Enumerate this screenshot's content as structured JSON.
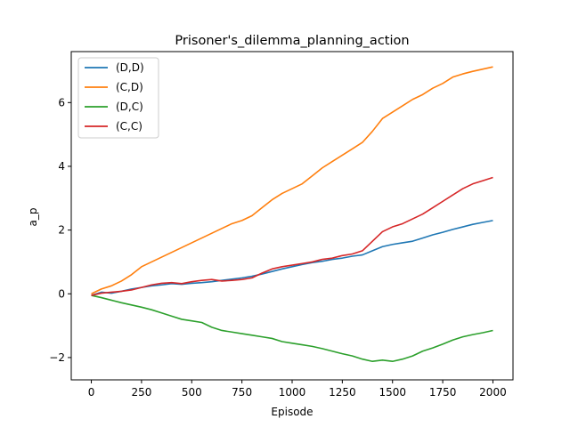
{
  "chart_data": {
    "type": "line",
    "title": "Prisoner's_dilemma_planning_action",
    "xlabel": "Episode",
    "ylabel": "a_p",
    "xlim": [
      -100,
      2100
    ],
    "ylim": [
      -2.7,
      7.6
    ],
    "xticks": [
      0,
      250,
      500,
      750,
      1000,
      1250,
      1500,
      1750,
      2000
    ],
    "yticks": [
      -2,
      0,
      2,
      4,
      6
    ],
    "grid": false,
    "legend_position": "upper-left",
    "series": [
      {
        "name": "(D,D)",
        "color": "#1f77b4",
        "x": [
          0,
          50,
          100,
          150,
          200,
          250,
          300,
          350,
          400,
          450,
          500,
          550,
          600,
          650,
          700,
          750,
          800,
          850,
          900,
          950,
          1000,
          1050,
          1100,
          1150,
          1200,
          1250,
          1300,
          1350,
          1400,
          1450,
          1500,
          1550,
          1600,
          1650,
          1700,
          1750,
          1800,
          1850,
          1900,
          1950,
          2000
        ],
        "values": [
          -0.05,
          0.05,
          0.02,
          0.08,
          0.15,
          0.2,
          0.25,
          0.28,
          0.32,
          0.3,
          0.33,
          0.35,
          0.38,
          0.42,
          0.46,
          0.5,
          0.55,
          0.62,
          0.7,
          0.78,
          0.85,
          0.92,
          0.98,
          1.02,
          1.08,
          1.12,
          1.18,
          1.22,
          1.35,
          1.48,
          1.55,
          1.6,
          1.65,
          1.75,
          1.85,
          1.93,
          2.02,
          2.1,
          2.18,
          2.24,
          2.3
        ]
      },
      {
        "name": "(C,D)",
        "color": "#ff7f0e",
        "x": [
          0,
          50,
          100,
          150,
          200,
          250,
          300,
          350,
          400,
          450,
          500,
          550,
          600,
          650,
          700,
          750,
          800,
          850,
          900,
          950,
          1000,
          1050,
          1100,
          1150,
          1200,
          1250,
          1300,
          1350,
          1400,
          1450,
          1500,
          1550,
          1600,
          1650,
          1700,
          1750,
          1800,
          1850,
          1900,
          1950,
          2000
        ],
        "values": [
          0.0,
          0.15,
          0.25,
          0.4,
          0.6,
          0.85,
          1.0,
          1.15,
          1.3,
          1.45,
          1.6,
          1.75,
          1.9,
          2.05,
          2.2,
          2.3,
          2.45,
          2.7,
          2.95,
          3.15,
          3.3,
          3.45,
          3.7,
          3.95,
          4.15,
          4.35,
          4.55,
          4.75,
          5.1,
          5.5,
          5.7,
          5.9,
          6.1,
          6.25,
          6.45,
          6.6,
          6.8,
          6.9,
          6.98,
          7.05,
          7.12
        ]
      },
      {
        "name": "(D,C)",
        "color": "#2ca02c",
        "x": [
          0,
          50,
          100,
          150,
          200,
          250,
          300,
          350,
          400,
          450,
          500,
          550,
          600,
          650,
          700,
          750,
          800,
          850,
          900,
          950,
          1000,
          1050,
          1100,
          1150,
          1200,
          1250,
          1300,
          1350,
          1400,
          1450,
          1500,
          1550,
          1600,
          1650,
          1700,
          1750,
          1800,
          1850,
          1900,
          1950,
          2000
        ],
        "values": [
          -0.05,
          -0.12,
          -0.2,
          -0.28,
          -0.35,
          -0.42,
          -0.5,
          -0.6,
          -0.7,
          -0.8,
          -0.85,
          -0.9,
          -1.05,
          -1.15,
          -1.2,
          -1.25,
          -1.3,
          -1.35,
          -1.4,
          -1.5,
          -1.55,
          -1.6,
          -1.65,
          -1.72,
          -1.8,
          -1.88,
          -1.95,
          -2.05,
          -2.12,
          -2.08,
          -2.12,
          -2.05,
          -1.95,
          -1.8,
          -1.7,
          -1.58,
          -1.45,
          -1.35,
          -1.28,
          -1.22,
          -1.15
        ]
      },
      {
        "name": "(C,C)",
        "color": "#d62728",
        "x": [
          0,
          50,
          100,
          150,
          200,
          250,
          300,
          350,
          400,
          450,
          500,
          550,
          600,
          650,
          700,
          750,
          800,
          850,
          900,
          950,
          1000,
          1050,
          1100,
          1150,
          1200,
          1250,
          1300,
          1350,
          1400,
          1450,
          1500,
          1550,
          1600,
          1650,
          1700,
          1750,
          1800,
          1850,
          1900,
          1950,
          2000
        ],
        "values": [
          -0.05,
          0.02,
          0.05,
          0.08,
          0.12,
          0.2,
          0.28,
          0.33,
          0.35,
          0.32,
          0.38,
          0.42,
          0.45,
          0.4,
          0.42,
          0.45,
          0.5,
          0.65,
          0.78,
          0.85,
          0.9,
          0.95,
          1.0,
          1.08,
          1.12,
          1.2,
          1.25,
          1.35,
          1.65,
          1.95,
          2.1,
          2.2,
          2.35,
          2.5,
          2.7,
          2.9,
          3.1,
          3.3,
          3.45,
          3.55,
          3.65
        ]
      }
    ]
  }
}
